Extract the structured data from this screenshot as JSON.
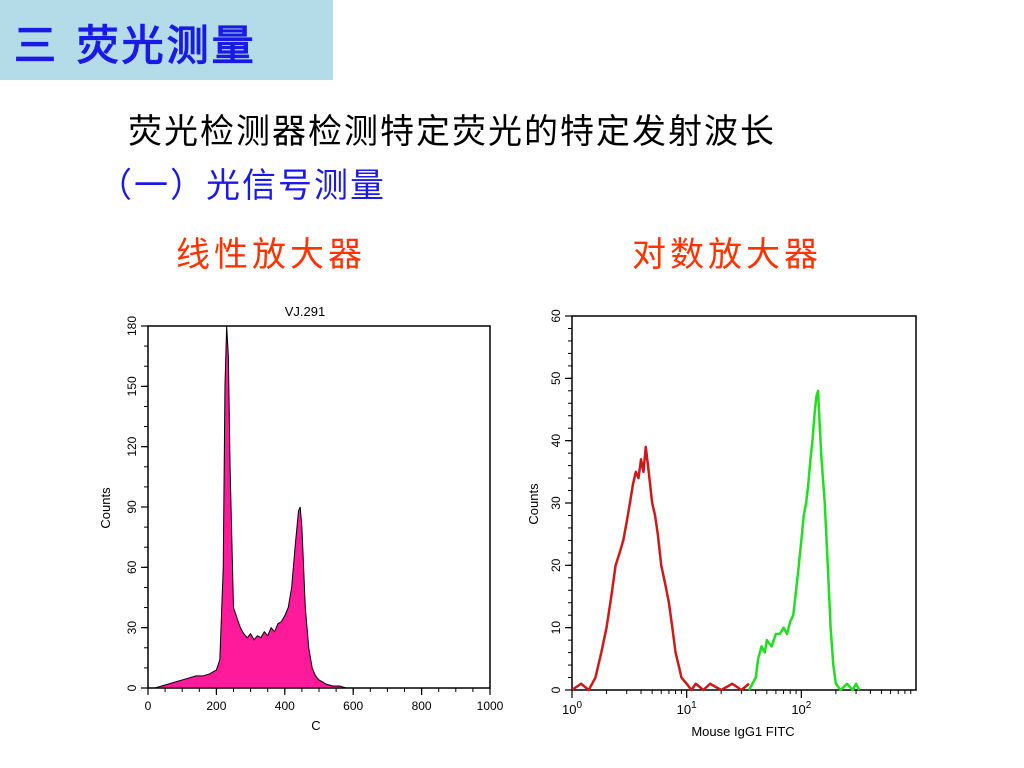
{
  "slide": {
    "title": "三 荧光测量",
    "heading": "荧光检测器检测特定荧光的特定发射波长",
    "subheading": "（一）光信号测量",
    "label_linear": "线性放大器",
    "label_log": "对数放大器"
  },
  "colors": {
    "title_bg": "#b4dce8",
    "title_text": "#1a1ae6",
    "label_text": "#ff3300",
    "fill_magenta": "#ff1a9c",
    "red_series": "#cc1a1a",
    "green_series": "#22dd22"
  },
  "chart_data": [
    {
      "type": "area",
      "title": "VJ.291",
      "xlabel": "C",
      "ylabel": "Counts",
      "xlim": [
        0,
        1000
      ],
      "ylim": [
        0,
        180
      ],
      "xticks": [
        0,
        200,
        400,
        600,
        800,
        1000
      ],
      "yticks": [
        0,
        30,
        60,
        90,
        120,
        150,
        180
      ],
      "series": [
        {
          "x": [
            0,
            20,
            40,
            60,
            80,
            100,
            120,
            140,
            160,
            180,
            200,
            210,
            220,
            225,
            230,
            235,
            240,
            250,
            260,
            270,
            280,
            290,
            300,
            310,
            320,
            330,
            340,
            350,
            360,
            370,
            380,
            390,
            400,
            410,
            420,
            430,
            440,
            445,
            450,
            455,
            460,
            470,
            480,
            490,
            500,
            520,
            540,
            560,
            580,
            600,
            1000
          ],
          "values": [
            0,
            0,
            1,
            2,
            3,
            4,
            5,
            6,
            6,
            7,
            9,
            14,
            60,
            150,
            180,
            165,
            110,
            40,
            35,
            30,
            27,
            25,
            27,
            24,
            26,
            25,
            28,
            26,
            30,
            28,
            32,
            33,
            36,
            40,
            50,
            70,
            88,
            90,
            80,
            60,
            40,
            20,
            10,
            6,
            4,
            2,
            1,
            1,
            0,
            0,
            0
          ]
        }
      ]
    },
    {
      "type": "line",
      "xlabel": "Mouse IgG1 FITC",
      "ylabel": "Counts",
      "xscale": "log",
      "xlim": [
        1,
        1000
      ],
      "ylim": [
        0,
        60
      ],
      "xticks": [
        "10^0",
        "10^1",
        "10^2"
      ],
      "yticks": [
        0,
        10,
        20,
        30,
        40,
        50,
        60
      ],
      "series": [
        {
          "color": "#cc1a1a",
          "x": [
            1.0,
            1.2,
            1.4,
            1.6,
            1.8,
            2.0,
            2.2,
            2.4,
            2.6,
            2.8,
            3.0,
            3.2,
            3.4,
            3.6,
            3.8,
            4.0,
            4.2,
            4.4,
            4.6,
            4.8,
            5.0,
            5.3,
            5.6,
            6.0,
            6.5,
            7.0,
            7.5,
            8.0,
            8.5,
            9.0,
            10,
            11,
            12,
            14,
            16,
            20,
            25,
            30,
            35
          ],
          "values": [
            0,
            1,
            0,
            2,
            6,
            10,
            15,
            20,
            22,
            24,
            27,
            30,
            33,
            35,
            34,
            37,
            35,
            39,
            36,
            33,
            30,
            28,
            25,
            20,
            17,
            14,
            10,
            6,
            4,
            2,
            1,
            0,
            1,
            0,
            1,
            0,
            1,
            0,
            1
          ]
        },
        {
          "color": "#22dd22",
          "x": [
            35,
            40,
            42,
            45,
            48,
            50,
            55,
            60,
            65,
            70,
            75,
            80,
            85,
            90,
            95,
            100,
            105,
            110,
            115,
            120,
            125,
            130,
            135,
            140,
            145,
            150,
            160,
            170,
            180,
            190,
            200,
            220,
            250,
            280,
            300,
            320
          ],
          "values": [
            0,
            2,
            5,
            7,
            6,
            8,
            7,
            9,
            9,
            10,
            9,
            11,
            12,
            16,
            20,
            24,
            28,
            30,
            33,
            37,
            40,
            44,
            47,
            48,
            42,
            37,
            30,
            20,
            10,
            4,
            1,
            0,
            1,
            0,
            1,
            0
          ]
        }
      ]
    }
  ]
}
